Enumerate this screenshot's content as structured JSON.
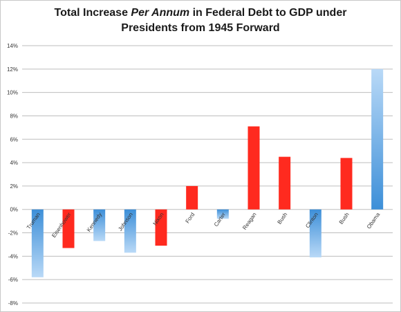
{
  "chart_data": {
    "type": "bar",
    "title_parts": [
      {
        "text": "Total Increase ",
        "italic": false
      },
      {
        "text": "Per Annum",
        "italic": true
      },
      {
        "text": " in Federal Debt to GDP under",
        "italic": false
      }
    ],
    "title_line2": "Presidents from 1945 Forward",
    "categories": [
      "Truman",
      "Eisenhower",
      "Kennedy",
      "Johnson",
      "Nixon",
      "Ford",
      "Carter",
      "Reagan",
      "Bush",
      "Clinton",
      "Bush",
      "Obama"
    ],
    "values": [
      -5.8,
      -3.3,
      -2.7,
      -3.7,
      -3.1,
      2.0,
      -0.8,
      7.1,
      4.5,
      -4.1,
      4.4,
      12.0
    ],
    "party": [
      "D",
      "R",
      "D",
      "D",
      "R",
      "R",
      "D",
      "R",
      "R",
      "D",
      "R",
      "D"
    ],
    "ylim": [
      -8,
      14
    ],
    "ytick_labels": [
      "14%",
      "12%",
      "10%",
      "8%",
      "6%",
      "4%",
      "2%",
      "0%",
      "-2%",
      "-4%",
      "-6%",
      "-8%"
    ],
    "grid": true,
    "colors": {
      "republican": "#ff2a1f",
      "democrat_light": "#b9d9f7",
      "democrat_dark": "#3d8fd8",
      "grid": "#bdbdbd"
    }
  }
}
